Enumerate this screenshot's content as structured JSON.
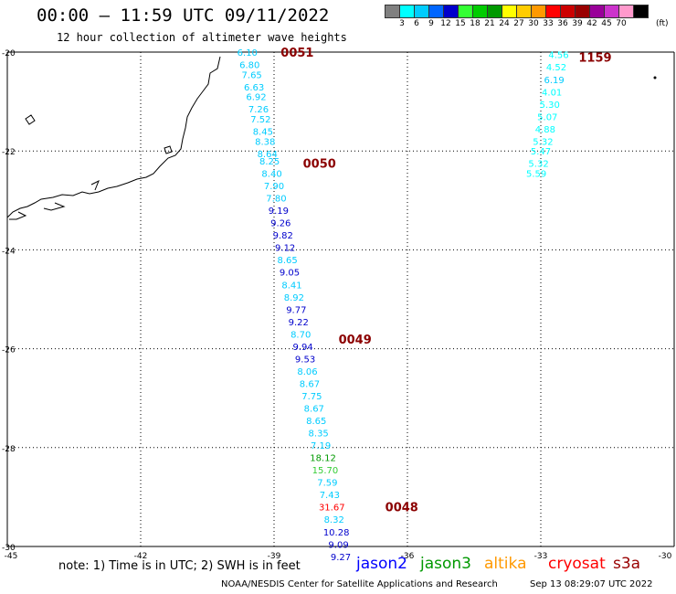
{
  "header": {
    "title": "00:00 – 11:59 UTC 09/11/2022",
    "subtitle": "12 hour collection of altimeter wave heights"
  },
  "legend": {
    "unit": "(ft)",
    "swatches": [
      "#808080",
      "#00ffff",
      "#00ccff",
      "#0066ff",
      "#0000cc",
      "#33ff33",
      "#00cc00",
      "#009900",
      "#ffff00",
      "#ffcc00",
      "#ff9900",
      "#ff0000",
      "#cc0000",
      "#990000",
      "#990099",
      "#cc33cc",
      "#ff99cc",
      "#000000"
    ],
    "labels": [
      "3",
      "6",
      "9",
      "12",
      "15",
      "18",
      "21",
      "24",
      "27",
      "30",
      "33",
      "36",
      "39",
      "42",
      "45",
      "70"
    ]
  },
  "axes": {
    "lat_labels": [
      "-20",
      "-22",
      "-24",
      "-26",
      "-28",
      "-30"
    ],
    "lon_labels": [
      "-45",
      "-42",
      "-39",
      "-36",
      "-33",
      "-30"
    ]
  },
  "track_times": [
    {
      "text": "0051",
      "lon": -38.85,
      "lat": -20.0
    },
    {
      "text": "0050",
      "lon": -38.35,
      "lat": -22.25
    },
    {
      "text": "0049",
      "lon": -37.55,
      "lat": -25.8
    },
    {
      "text": "0048",
      "lon": -36.5,
      "lat": -29.2
    },
    {
      "text": "1159",
      "lon": -32.15,
      "lat": -20.1
    }
  ],
  "track_a": [
    {
      "v": "6.10",
      "lon": -39.6,
      "lat": -20.0,
      "c": "#00ccff"
    },
    {
      "v": "6.80",
      "lon": -39.55,
      "lat": -20.25,
      "c": "#00ccff"
    },
    {
      "v": "7.65",
      "lon": -39.5,
      "lat": -20.45,
      "c": "#00ccff"
    },
    {
      "v": "6.63",
      "lon": -39.45,
      "lat": -20.7,
      "c": "#00ccff"
    },
    {
      "v": "6.92",
      "lon": -39.4,
      "lat": -20.9,
      "c": "#00ccff"
    },
    {
      "v": "7.26",
      "lon": -39.35,
      "lat": -21.15,
      "c": "#00ccff"
    },
    {
      "v": "7.52",
      "lon": -39.3,
      "lat": -21.35,
      "c": "#00ccff"
    },
    {
      "v": "8.45",
      "lon": -39.25,
      "lat": -21.6,
      "c": "#00ccff"
    },
    {
      "v": "8.38",
      "lon": -39.2,
      "lat": -21.8,
      "c": "#00ccff"
    },
    {
      "v": "8.64",
      "lon": -39.15,
      "lat": -22.05,
      "c": "#00ccff"
    },
    {
      "v": "8.25",
      "lon": -39.1,
      "lat": -22.2,
      "c": "#00ccff"
    },
    {
      "v": "8.40",
      "lon": -39.05,
      "lat": -22.45,
      "c": "#00ccff"
    },
    {
      "v": "7.90",
      "lon": -39.0,
      "lat": -22.7,
      "c": "#00ccff"
    },
    {
      "v": "7.80",
      "lon": -38.95,
      "lat": -22.95,
      "c": "#00ccff"
    },
    {
      "v": "9.19",
      "lon": -38.9,
      "lat": -23.2,
      "c": "#0000cc"
    },
    {
      "v": "9.26",
      "lon": -38.85,
      "lat": -23.45,
      "c": "#0000cc"
    },
    {
      "v": "9.82",
      "lon": -38.8,
      "lat": -23.7,
      "c": "#0000cc"
    },
    {
      "v": "9.12",
      "lon": -38.75,
      "lat": -23.95,
      "c": "#0000cc"
    },
    {
      "v": "8.65",
      "lon": -38.7,
      "lat": -24.2,
      "c": "#00ccff"
    },
    {
      "v": "9.05",
      "lon": -38.65,
      "lat": -24.45,
      "c": "#0000cc"
    },
    {
      "v": "8.41",
      "lon": -38.6,
      "lat": -24.7,
      "c": "#00ccff"
    },
    {
      "v": "8.92",
      "lon": -38.55,
      "lat": -24.95,
      "c": "#00ccff"
    },
    {
      "v": "9.77",
      "lon": -38.5,
      "lat": -25.2,
      "c": "#0000cc"
    },
    {
      "v": "9.22",
      "lon": -38.45,
      "lat": -25.45,
      "c": "#0000cc"
    },
    {
      "v": "8.70",
      "lon": -38.4,
      "lat": -25.7,
      "c": "#00ccff"
    },
    {
      "v": "9.94",
      "lon": -38.35,
      "lat": -25.95,
      "c": "#0000cc"
    },
    {
      "v": "9.53",
      "lon": -38.3,
      "lat": -26.2,
      "c": "#0000cc"
    },
    {
      "v": "8.06",
      "lon": -38.25,
      "lat": -26.45,
      "c": "#00ccff"
    },
    {
      "v": "8.67",
      "lon": -38.2,
      "lat": -26.7,
      "c": "#00ccff"
    },
    {
      "v": "7.75",
      "lon": -38.15,
      "lat": -26.95,
      "c": "#00ccff"
    },
    {
      "v": "8.67",
      "lon": -38.1,
      "lat": -27.2,
      "c": "#00ccff"
    },
    {
      "v": "8.65",
      "lon": -38.05,
      "lat": -27.45,
      "c": "#00ccff"
    },
    {
      "v": "8.35",
      "lon": -38.0,
      "lat": -27.7,
      "c": "#00ccff"
    },
    {
      "v": "7.19",
      "lon": -37.95,
      "lat": -27.95,
      "c": "#00ccff"
    },
    {
      "v": "18.12",
      "lon": -37.9,
      "lat": -28.2,
      "c": "#009900"
    },
    {
      "v": "15.70",
      "lon": -37.85,
      "lat": -28.45,
      "c": "#33cc33"
    },
    {
      "v": "7.59",
      "lon": -37.8,
      "lat": -28.7,
      "c": "#00ccff"
    },
    {
      "v": "7.43",
      "lon": -37.75,
      "lat": -28.95,
      "c": "#00ccff"
    },
    {
      "v": "31.67",
      "lon": -37.7,
      "lat": -29.2,
      "c": "#ff0000"
    },
    {
      "v": "8.32",
      "lon": -37.65,
      "lat": -29.45,
      "c": "#00ccff"
    },
    {
      "v": "10.28",
      "lon": -37.6,
      "lat": -29.7,
      "c": "#0000cc"
    },
    {
      "v": "9.09",
      "lon": -37.55,
      "lat": -29.95,
      "c": "#0000cc"
    },
    {
      "v": "9.27",
      "lon": -37.5,
      "lat": -30.2,
      "c": "#0000cc"
    }
  ],
  "track_b": [
    {
      "v": "4.56",
      "lon": -32.6,
      "lat": -20.05,
      "c": "#00ffff"
    },
    {
      "v": "4.52",
      "lon": -32.65,
      "lat": -20.3,
      "c": "#00ffff"
    },
    {
      "v": "6.19",
      "lon": -32.7,
      "lat": -20.55,
      "c": "#00ccff"
    },
    {
      "v": "4.01",
      "lon": -32.75,
      "lat": -20.8,
      "c": "#00ffff"
    },
    {
      "v": "5.30",
      "lon": -32.8,
      "lat": -21.05,
      "c": "#00ffff"
    },
    {
      "v": "5.07",
      "lon": -32.85,
      "lat": -21.3,
      "c": "#00ffff"
    },
    {
      "v": "4.88",
      "lon": -32.9,
      "lat": -21.55,
      "c": "#00ffff"
    },
    {
      "v": "5.32",
      "lon": -32.95,
      "lat": -21.8,
      "c": "#00ffff"
    },
    {
      "v": "5.47",
      "lon": -33.0,
      "lat": -22.0,
      "c": "#00ffff"
    },
    {
      "v": "5.32",
      "lon": -33.05,
      "lat": -22.25,
      "c": "#00ffff"
    },
    {
      "v": "5.59",
      "lon": -33.1,
      "lat": -22.45,
      "c": "#00ffff"
    }
  ],
  "note": "note: 1) Time is in UTC; 2) SWH is in feet",
  "satellites": [
    {
      "name": "jason2",
      "color": "#0000ff"
    },
    {
      "name": "jason3",
      "color": "#009900"
    },
    {
      "name": "altika",
      "color": "#ff9900"
    },
    {
      "name": "cryosat",
      "color": "#ff0000"
    },
    {
      "name": "s3a",
      "color": "#990000"
    }
  ],
  "footer": {
    "credit": "NOAA/NESDIS Center for Satellite Applications and Research",
    "timestamp": "Sep 13 08:29:07 UTC 2022"
  }
}
